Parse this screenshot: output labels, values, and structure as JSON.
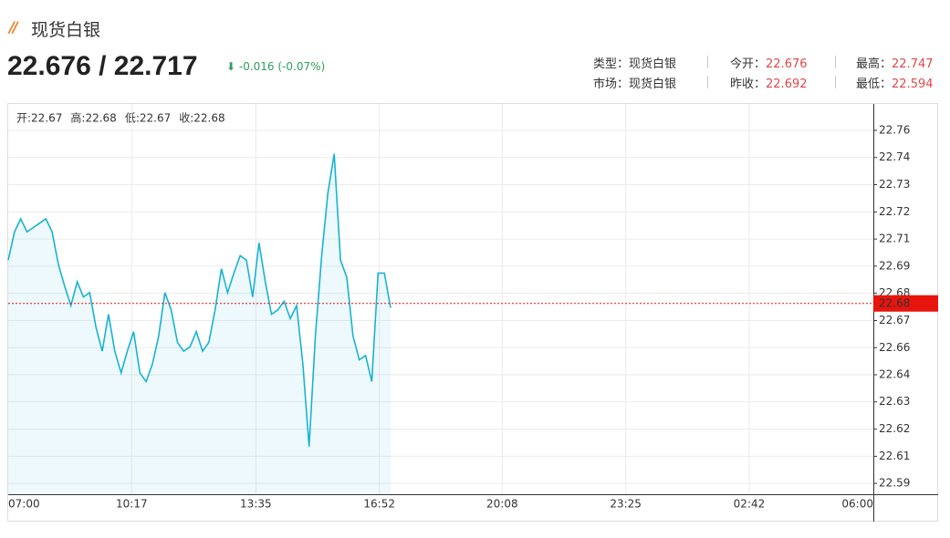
{
  "header": {
    "title": "现货白银",
    "price": "22.676 / 22.717",
    "change": "-0.016 (-0.07%)"
  },
  "info": [
    [
      {
        "label": "类型：现货白银"
      },
      {
        "label": "今开：",
        "value": 22.676
      },
      {
        "label": "最高：",
        "value": 22.747
      }
    ],
    [
      {
        "label": "市场：现货白银"
      },
      {
        "label": "昨收：",
        "value": 22.692
      },
      {
        "label": "最低：",
        "value": 22.594
      }
    ]
  ],
  "chart_data": {
    "type": "line",
    "ohlc": [
      {
        "label": "开:",
        "value": 22.67
      },
      {
        "label": "高:",
        "value": 22.68
      },
      {
        "label": "低:",
        "value": 22.67
      },
      {
        "label": "收:",
        "value": 22.68
      }
    ],
    "x": [
      "07:00",
      "07:10",
      "07:20",
      "07:30",
      "07:40",
      "07:50",
      "08:00",
      "08:10",
      "08:20",
      "08:30",
      "08:40",
      "08:50",
      "09:00",
      "09:10",
      "09:20",
      "09:30",
      "09:40",
      "09:50",
      "10:00",
      "10:10",
      "10:20",
      "10:30",
      "10:40",
      "10:50",
      "11:00",
      "11:10",
      "11:20",
      "11:30",
      "11:40",
      "11:50",
      "12:00",
      "12:10",
      "12:20",
      "12:30",
      "12:40",
      "12:50",
      "13:00",
      "13:10",
      "13:20",
      "13:30",
      "13:40",
      "13:50",
      "14:00",
      "14:10",
      "14:20",
      "14:30",
      "14:40",
      "14:50",
      "15:00",
      "15:10",
      "15:20",
      "15:30",
      "15:40",
      "15:50",
      "16:00",
      "16:10",
      "16:20",
      "16:30",
      "16:40",
      "16:50",
      "17:00",
      "17:10"
    ],
    "series": [
      {
        "color": "#17b3d3",
        "values": [
          22.696,
          22.709,
          22.715,
          22.709,
          22.711,
          22.713,
          22.715,
          22.709,
          22.694,
          22.684,
          22.675,
          22.686,
          22.679,
          22.681,
          22.665,
          22.654,
          22.671,
          22.654,
          22.644,
          22.654,
          22.663,
          22.644,
          22.64,
          22.648,
          22.661,
          22.681,
          22.673,
          22.658,
          22.654,
          22.656,
          22.663,
          22.654,
          22.658,
          22.673,
          22.692,
          22.681,
          22.69,
          22.698,
          22.696,
          22.679,
          22.704,
          22.686,
          22.671,
          22.673,
          22.677,
          22.669,
          22.675,
          22.648,
          22.61,
          22.661,
          22.698,
          22.727,
          22.745,
          22.696,
          22.688,
          22.661,
          22.65,
          22.652,
          22.64,
          22.69,
          22.69,
          22.674
        ]
      }
    ],
    "xlim": [
      "07:00",
      "06:00"
    ],
    "xticks": [
      "07:00",
      "10:17",
      "13:35",
      "16:52",
      "20:08",
      "23:25",
      "02:42",
      "06:00"
    ],
    "ylim": [
      22.588,
      22.768
    ],
    "yticks": [
      {
        "value": 22.593,
        "label": "22.59"
      },
      {
        "value": 22.6055,
        "label": "22.61"
      },
      {
        "value": 22.618,
        "label": "22.62"
      },
      {
        "value": 22.6306,
        "label": "22.63"
      },
      {
        "value": 22.6431,
        "label": "22.64"
      },
      {
        "value": 22.6556,
        "label": "22.66"
      },
      {
        "value": 22.6681,
        "label": "22.67"
      },
      {
        "value": 22.6807,
        "label": "22.68"
      },
      {
        "value": 22.6932,
        "label": "22.69"
      },
      {
        "value": 22.7057,
        "label": "22.71"
      },
      {
        "value": 22.7182,
        "label": "22.72"
      },
      {
        "value": 22.7308,
        "label": "22.73"
      },
      {
        "value": 22.7433,
        "label": "22.74"
      },
      {
        "value": 22.7558,
        "label": "22.76"
      }
    ],
    "grid": true,
    "last": {
      "value": 22.676,
      "label": "22.68",
      "color": "#e8140e"
    }
  }
}
